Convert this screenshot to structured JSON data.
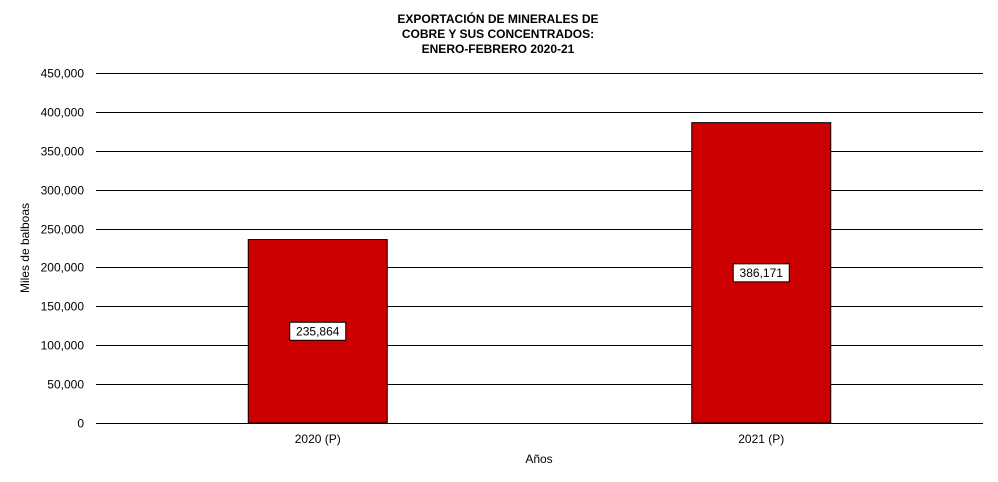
{
  "chart_data": {
    "type": "bar",
    "title_lines": [
      "EXPORTACIÓN  DE  MINERALES  DE",
      "COBRE  Y  SUS  CONCENTRADOS:",
      "ENERO-FEBRERO  2020-21"
    ],
    "categories": [
      "2020 (P)",
      "2021 (P)"
    ],
    "values": [
      235864,
      386171
    ],
    "value_labels": [
      "235,864",
      "386,171"
    ],
    "xlabel": "Años",
    "ylabel": "Miles de balboas",
    "ylim": [
      0,
      450000
    ],
    "yticks": [
      0,
      50000,
      100000,
      150000,
      200000,
      250000,
      300000,
      350000,
      400000,
      450000
    ],
    "ytick_labels": [
      "0",
      "50,000",
      "100,000",
      "150,000",
      "200,000",
      "250,000",
      "300,000",
      "350,000",
      "400,000",
      "450,000"
    ],
    "grid": true,
    "legend": "none",
    "bar_color": "#cc0000"
  }
}
